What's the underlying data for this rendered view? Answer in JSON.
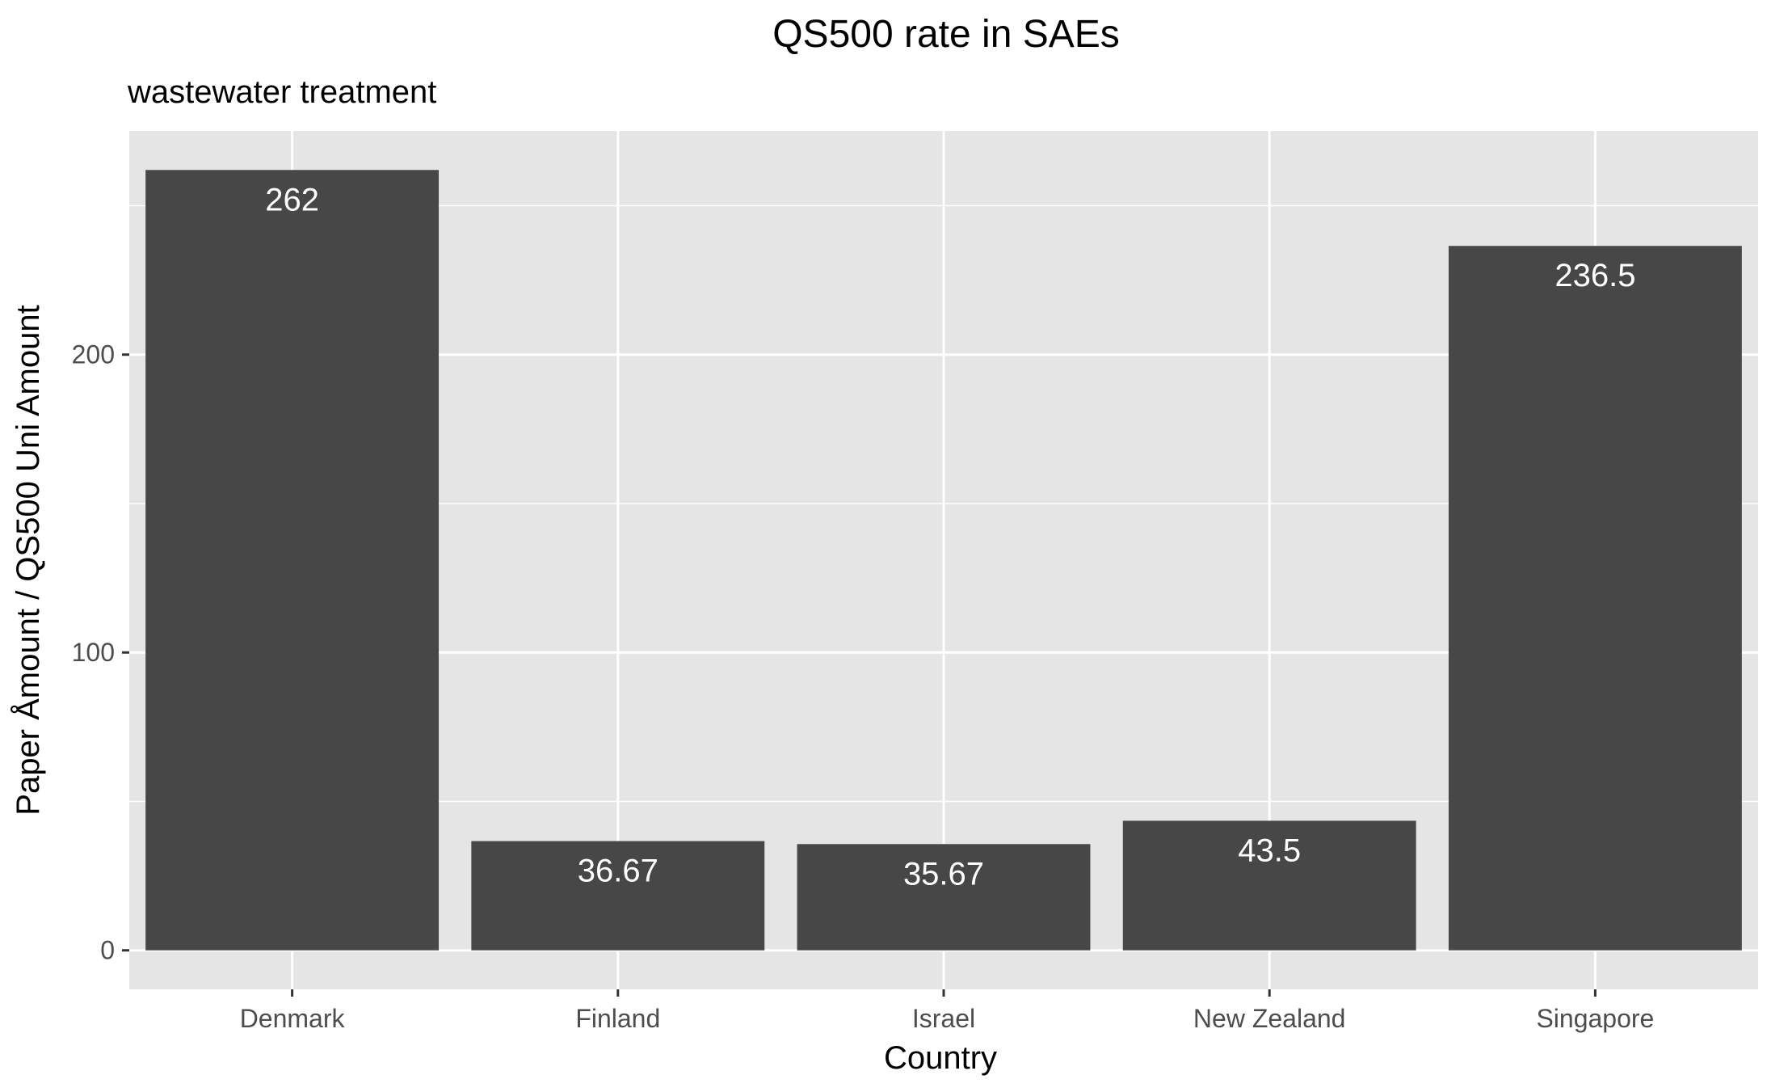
{
  "chart_data": {
    "type": "bar",
    "title": "QS500 rate in SAEs",
    "subtitle": "wastewater treatment",
    "xlabel": "Country",
    "ylabel": "Paper Åmount / QS500 Uni Amount",
    "categories": [
      "Denmark",
      "Finland",
      "Israel",
      "New Zealand",
      "Singapore"
    ],
    "values": [
      262,
      36.67,
      35.67,
      43.5,
      236.5
    ],
    "data_labels": [
      "262",
      "36.67",
      "35.67",
      "43.5",
      "236.5"
    ],
    "ylim": [
      -13.1,
      275.1
    ],
    "y_ticks": [
      0,
      100,
      200
    ],
    "y_tick_labels": [
      "0",
      "100",
      "200"
    ],
    "grid": true,
    "legend": "none",
    "colors": {
      "panel": "#e5e5e5",
      "grid": "#ffffff",
      "bar": "#474747",
      "tick_text": "#4d4d4d",
      "text": "#000000"
    }
  }
}
